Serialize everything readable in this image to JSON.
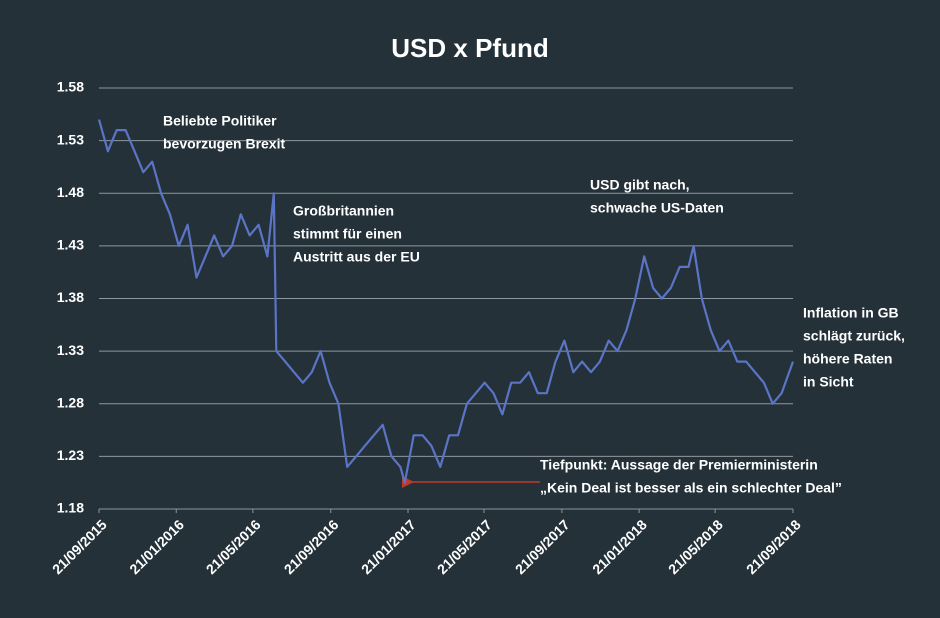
{
  "chart_data": {
    "type": "line",
    "title": "USD x Pfund",
    "x": [
      "2015-09-21",
      "2015-10-05",
      "2015-10-19",
      "2015-11-02",
      "2015-11-16",
      "2015-11-30",
      "2015-12-14",
      "2015-12-28",
      "2016-01-11",
      "2016-01-25",
      "2016-02-08",
      "2016-02-22",
      "2016-03-07",
      "2016-03-21",
      "2016-04-04",
      "2016-04-18",
      "2016-05-02",
      "2016-05-16",
      "2016-05-30",
      "2016-06-13",
      "2016-06-23",
      "2016-06-27",
      "2016-07-11",
      "2016-07-25",
      "2016-08-08",
      "2016-08-22",
      "2016-09-05",
      "2016-09-19",
      "2016-10-03",
      "2016-10-17",
      "2016-10-31",
      "2016-11-14",
      "2016-11-28",
      "2016-12-12",
      "2016-12-26",
      "2017-01-09",
      "2017-01-16",
      "2017-01-30",
      "2017-02-13",
      "2017-02-27",
      "2017-03-13",
      "2017-03-27",
      "2017-04-10",
      "2017-04-24",
      "2017-05-08",
      "2017-05-22",
      "2017-06-05",
      "2017-06-19",
      "2017-07-03",
      "2017-07-17",
      "2017-07-31",
      "2017-08-14",
      "2017-08-28",
      "2017-09-11",
      "2017-09-25",
      "2017-10-09",
      "2017-10-23",
      "2017-11-06",
      "2017-11-20",
      "2017-12-04",
      "2017-12-18",
      "2018-01-01",
      "2018-01-15",
      "2018-01-29",
      "2018-02-12",
      "2018-02-26",
      "2018-03-12",
      "2018-03-26",
      "2018-04-09",
      "2018-04-17",
      "2018-04-30",
      "2018-05-14",
      "2018-05-28",
      "2018-06-11",
      "2018-06-25",
      "2018-07-09",
      "2018-07-23",
      "2018-08-06",
      "2018-08-20",
      "2018-09-03",
      "2018-09-21"
    ],
    "series": [
      {
        "name": "USD x Pfund",
        "color": "#5b74c6",
        "values": [
          1.55,
          1.52,
          1.54,
          1.54,
          1.52,
          1.5,
          1.51,
          1.48,
          1.46,
          1.43,
          1.45,
          1.4,
          1.42,
          1.44,
          1.42,
          1.43,
          1.46,
          1.44,
          1.45,
          1.42,
          1.48,
          1.33,
          1.32,
          1.31,
          1.3,
          1.31,
          1.33,
          1.3,
          1.28,
          1.22,
          1.23,
          1.24,
          1.25,
          1.26,
          1.23,
          1.22,
          1.205,
          1.25,
          1.25,
          1.24,
          1.22,
          1.25,
          1.25,
          1.28,
          1.29,
          1.3,
          1.29,
          1.27,
          1.3,
          1.3,
          1.31,
          1.29,
          1.29,
          1.32,
          1.34,
          1.31,
          1.32,
          1.31,
          1.32,
          1.34,
          1.33,
          1.35,
          1.38,
          1.42,
          1.39,
          1.38,
          1.39,
          1.41,
          1.41,
          1.43,
          1.38,
          1.35,
          1.33,
          1.34,
          1.32,
          1.32,
          1.31,
          1.3,
          1.28,
          1.29,
          1.32
        ]
      }
    ],
    "xlim": [
      "2015-09-21",
      "2018-09-21"
    ],
    "xticks": [
      {
        "value": "2015-09-21",
        "label": "21/09/2015"
      },
      {
        "value": "2016-01-21",
        "label": "21/01/2016"
      },
      {
        "value": "2016-05-21",
        "label": "21/05/2016"
      },
      {
        "value": "2016-09-21",
        "label": "21/09/2016"
      },
      {
        "value": "2017-01-21",
        "label": "21/01/2017"
      },
      {
        "value": "2017-05-21",
        "label": "21/05/2017"
      },
      {
        "value": "2017-09-21",
        "label": "21/09/2017"
      },
      {
        "value": "2018-01-21",
        "label": "21/01/2018"
      },
      {
        "value": "2018-05-21",
        "label": "21/05/2018"
      },
      {
        "value": "2018-09-21",
        "label": "21/09/2018"
      }
    ],
    "ylim": [
      1.18,
      1.58
    ],
    "yticks": [
      1.18,
      1.23,
      1.28,
      1.33,
      1.38,
      1.43,
      1.48,
      1.53,
      1.58
    ],
    "grid": true,
    "annotations": [
      {
        "lines": [
          "Beliebte Politiker",
          "bevorzugen Brexit"
        ]
      },
      {
        "lines": [
          "Großbritannien",
          "stimmt für einen",
          "Austritt aus der EU"
        ]
      },
      {
        "lines": [
          "USD gibt nach,",
          "schwache US-Daten"
        ]
      },
      {
        "lines": [
          "Inflation in GB",
          "schlägt zurück,",
          "höhere Raten",
          "in Sicht"
        ]
      },
      {
        "lines": [
          "Tiefpunkt: Aussage der Premierministerin",
          "„Kein Deal ist besser als ein schlechter Deal”"
        ]
      }
    ]
  }
}
